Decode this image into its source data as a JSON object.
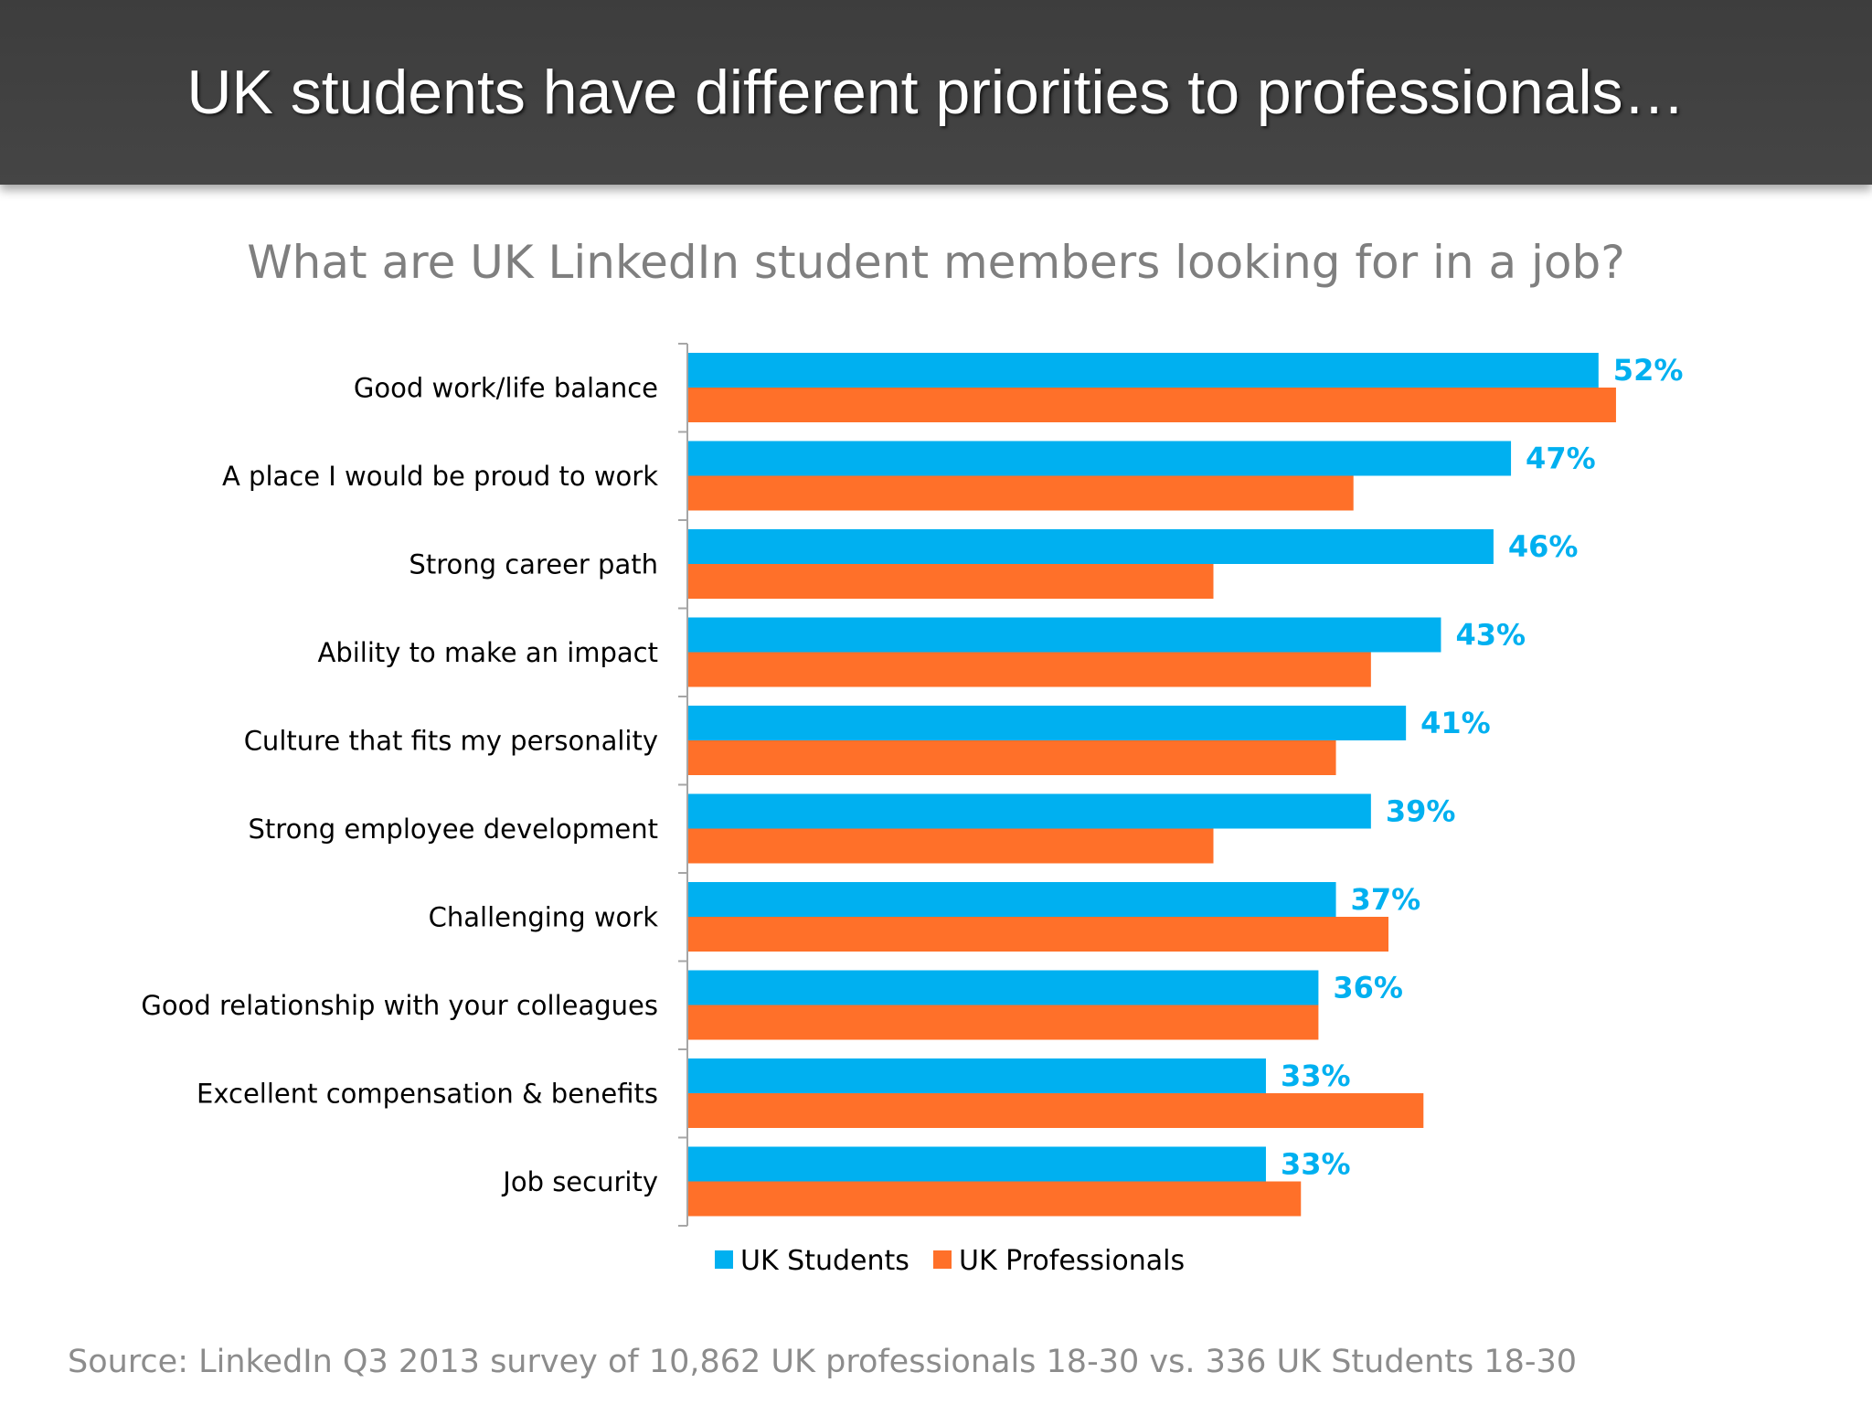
{
  "slide": {
    "title": "UK students have different priorities to professionals…",
    "source": "Source: LinkedIn Q3 2013 survey of 10,862 UK professionals 18-30 vs. 336 UK Students 18-30"
  },
  "colors": {
    "students": "#00b0f0",
    "professionals": "#ff7029",
    "header_bg": "#404040",
    "axis": "#a6a6a6"
  },
  "chart_data": {
    "type": "bar",
    "orientation": "horizontal",
    "title": "What  are UK LinkedIn student members looking for in a job?",
    "categories": [
      "Good work/life balance",
      "A place I would be proud to work",
      "Strong career path",
      "Ability to make an impact",
      "Culture that fits my personality",
      "Strong employee development",
      "Challenging work",
      "Good relationship with your colleagues",
      "Excellent compensation & benefits",
      "Job security"
    ],
    "series": [
      {
        "name": "UK Students",
        "color": "#00b0f0",
        "values": [
          52,
          47,
          46,
          43,
          41,
          39,
          37,
          36,
          33,
          33
        ],
        "labels": [
          "52%",
          "47%",
          "46%",
          "43%",
          "41%",
          "39%",
          "37%",
          "36%",
          "33%",
          "33%"
        ]
      },
      {
        "name": "UK Professionals",
        "color": "#ff7029",
        "values": [
          53,
          38,
          30,
          39,
          37,
          30,
          40,
          36,
          42,
          35
        ]
      }
    ],
    "xlim": [
      0,
      60
    ],
    "grid": false,
    "legend_position": "bottom"
  }
}
